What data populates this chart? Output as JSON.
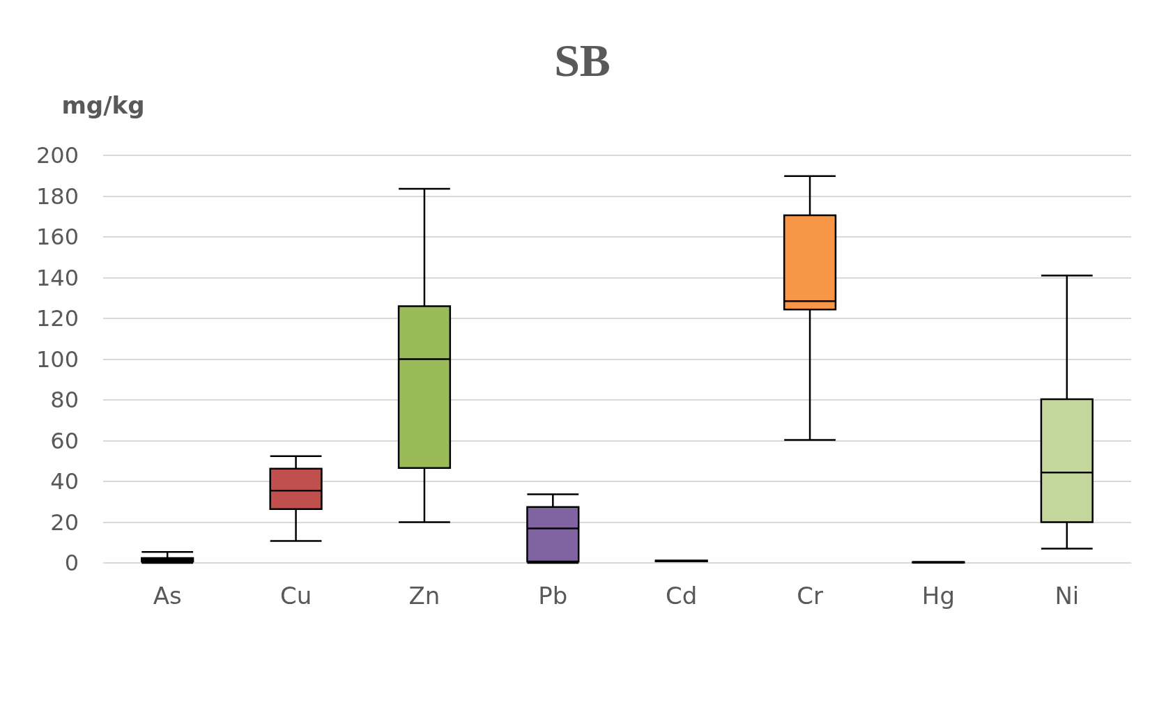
{
  "chart_data": {
    "type": "box",
    "title": "SB",
    "ylabel": "mg/kg",
    "categories": [
      "As",
      "Cu",
      "Zn",
      "Pb",
      "Cd",
      "Cr",
      "Hg",
      "Ni"
    ],
    "boxes": [
      {
        "low": 0,
        "q1": 0.7,
        "median": 1.5,
        "q3": 2.4,
        "high": 5.4
      },
      {
        "low": 10.8,
        "q1": 26.4,
        "median": 35.5,
        "q3": 46.2,
        "high": 52.4
      },
      {
        "low": 20,
        "q1": 46.6,
        "median": 100,
        "q3": 126,
        "high": 183.6
      },
      {
        "low": 0,
        "q1": 0.7,
        "median": 16.9,
        "q3": 27.4,
        "high": 33.7
      },
      {
        "low": 0.8,
        "q1": 0.8,
        "median": 1,
        "q3": 1.2,
        "high": 1.2
      },
      {
        "low": 60.3,
        "q1": 124.4,
        "median": 128.5,
        "q3": 170.6,
        "high": 189.8
      },
      {
        "low": 0.1,
        "q1": 0.2,
        "median": 0.3,
        "q3": 0.4,
        "high": 0.5
      },
      {
        "low": 7,
        "q1": 20,
        "median": 44.4,
        "q3": 80.3,
        "high": 141
      }
    ],
    "colors": [
      "#5b9bd5",
      "#c0504d",
      "#9bbb59",
      "#8064a2",
      "#000000",
      "#f79646",
      "#404040",
      "#c3d69b"
    ],
    "ylim": [
      0,
      200
    ],
    "yticks": [
      0,
      20,
      40,
      60,
      80,
      100,
      120,
      140,
      160,
      180,
      200
    ],
    "grid": "y"
  }
}
